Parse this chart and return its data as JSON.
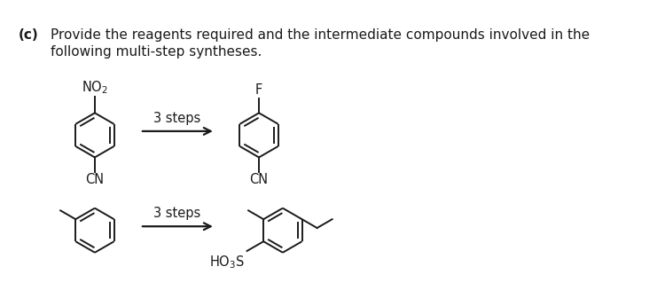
{
  "title_c": "(c)",
  "text_line1": "Provide the reagents required and the intermediate compounds involved in the",
  "text_line2": "following multi-step syntheses.",
  "text_fontsize": 11,
  "label_fontsize": 10.5,
  "background": "#ffffff",
  "line_color": "#1a1a1a",
  "line_width": 1.4,
  "arrow_label": "3 steps",
  "fig_w": 7.5,
  "fig_h": 3.45,
  "dpi": 100
}
